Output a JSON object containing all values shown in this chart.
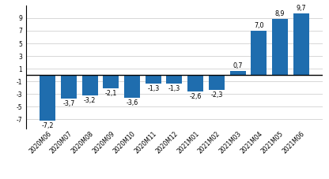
{
  "categories": [
    "2020M06",
    "2020M07",
    "2020M08",
    "2020M09",
    "2020M10",
    "2020M11",
    "2020M12",
    "2021M01",
    "2021M02",
    "2021M03",
    "2021M04",
    "2021M05",
    "2021M06"
  ],
  "values": [
    -7.2,
    -3.7,
    -3.2,
    -2.1,
    -3.6,
    -1.3,
    -1.3,
    -2.6,
    -2.3,
    0.7,
    7.0,
    8.9,
    9.7
  ],
  "bar_color": "#1F6DAE",
  "label_fontsize": 5.8,
  "tick_fontsize": 5.5,
  "ylim": [
    -8.5,
    11.0
  ],
  "yticks": [
    -7,
    -5,
    -3,
    -1,
    1,
    3,
    5,
    7,
    9
  ],
  "background_color": "#ffffff",
  "grid_color": "#c8c8c8"
}
